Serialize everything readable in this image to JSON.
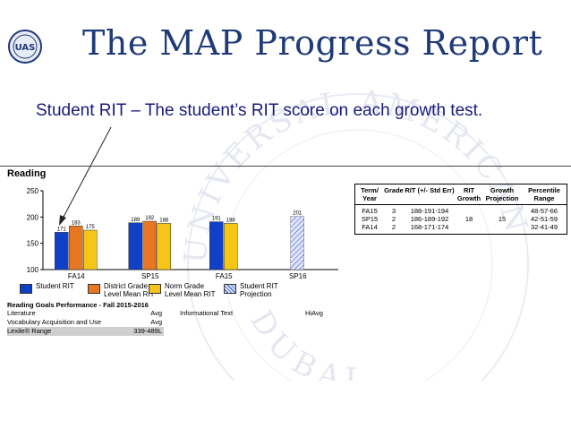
{
  "slide": {
    "title": "The MAP Progress Report",
    "subtitle": "Student RIT – The student’s RIT score on each growth test."
  },
  "logo": {
    "text": "UAS"
  },
  "watermark": {
    "top_text": "UNIVERSAL AMERICAN",
    "bottom_text": "DUBAI"
  },
  "report": {
    "section_label": "Reading",
    "legend": [
      {
        "label": "Student RIT",
        "color": "#1040c8",
        "pattern": "solid"
      },
      {
        "label": "District Grade Level Mean RIT",
        "color": "#e87722",
        "pattern": "solid"
      },
      {
        "label": "Norm Grade Level Mean RIT",
        "color": "#f5c518",
        "pattern": "solid"
      },
      {
        "label": "Student RIT Projection",
        "color": "#c9d3f5",
        "pattern": "hatched"
      }
    ],
    "goals": {
      "header": "Reading Goals Performance - Fall 2015-2016",
      "rows": [
        {
          "label": "Literature",
          "value": "Avg"
        },
        {
          "label": "Vocabulary Acquisition and Use",
          "value": "Avg"
        },
        {
          "label": "Lexile® Range",
          "value": "339-489L"
        }
      ],
      "informational_label": "Informational Text",
      "informational_value": "HiAvg"
    },
    "table": {
      "headers": [
        "Term/ Year",
        "Grade",
        "RIT (+/- Std Err)",
        "RIT Growth",
        "Growth Projection",
        "Percentile Range"
      ],
      "rows": [
        [
          "FA15",
          "3",
          "188-191-194",
          "",
          "",
          "48-57-66"
        ],
        [
          "SP15",
          "2",
          "186-189-192",
          "18",
          "15",
          "42-51-59"
        ],
        [
          "FA14",
          "2",
          "168-171-174",
          "",
          "",
          "32-41-49"
        ]
      ]
    }
  },
  "chart_data": {
    "type": "bar",
    "title": "Reading",
    "categories": [
      "FA14",
      "SP15",
      "FA15",
      "SP16"
    ],
    "ylim": [
      100,
      250
    ],
    "yticks": [
      100,
      150,
      200,
      250
    ],
    "grid": false,
    "series": [
      {
        "name": "Student RIT",
        "color": "#1040c8",
        "values": [
          171,
          189,
          191,
          null
        ]
      },
      {
        "name": "District Grade Level Mean RIT",
        "color": "#e87722",
        "values": [
          183,
          192,
          null,
          null
        ]
      },
      {
        "name": "Norm Grade Level Mean RIT",
        "color": "#f5c518",
        "values": [
          175,
          188,
          188,
          null
        ]
      },
      {
        "name": "Student RIT Projection",
        "color": "#c9d3f5",
        "values": [
          null,
          null,
          null,
          201
        ]
      }
    ]
  }
}
